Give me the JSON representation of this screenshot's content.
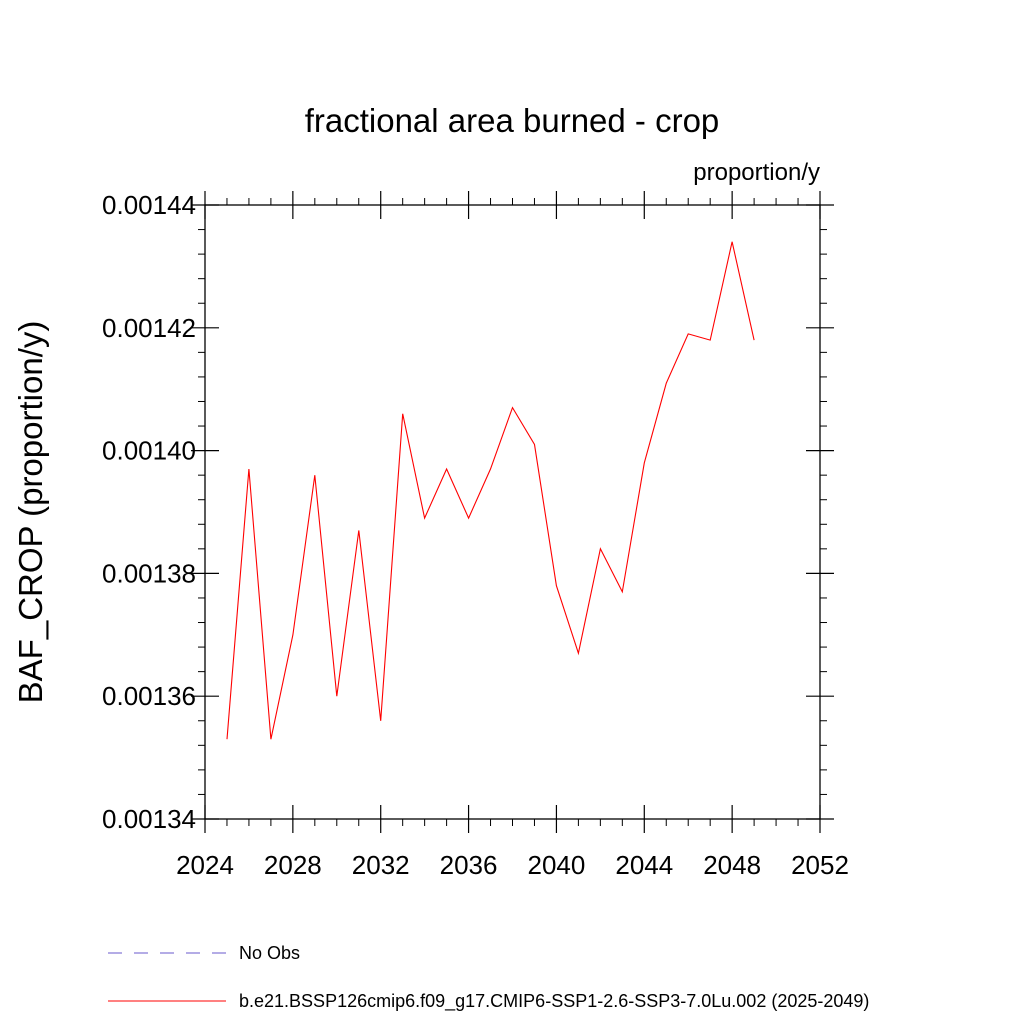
{
  "chart_data": {
    "type": "line",
    "title": "fractional area burned - crop",
    "units_label": "proportion/y",
    "xlabel": "",
    "ylabel": "BAF_CROP  (proportion/y)",
    "xlim": [
      2024,
      2052
    ],
    "ylim": [
      0.00134,
      0.00144
    ],
    "x_ticks": [
      2024,
      2028,
      2032,
      2036,
      2040,
      2044,
      2048,
      2052
    ],
    "x_tick_labels": [
      "2024",
      "2028",
      "2032",
      "2036",
      "2040",
      "2044",
      "2048",
      "2052"
    ],
    "y_ticks": [
      0.00134,
      0.00136,
      0.00138,
      0.0014,
      0.00142,
      0.00144
    ],
    "y_tick_labels": [
      "0.00134",
      "0.00136",
      "0.00138",
      "0.00140",
      "0.00142",
      "0.00144"
    ],
    "grid": false,
    "legend_position": "bottom",
    "series": [
      {
        "name": "b.e21.BSSP126cmip6.f09_g17.CMIP6-SSP1-2.6-SSP3-7.0Lu.002 (2025-2049)",
        "color": "#ff0000",
        "style": "solid",
        "x": [
          2025,
          2026,
          2027,
          2028,
          2029,
          2030,
          2031,
          2032,
          2033,
          2034,
          2035,
          2036,
          2037,
          2038,
          2039,
          2040,
          2041,
          2042,
          2043,
          2044,
          2045,
          2046,
          2047,
          2048,
          2049
        ],
        "values": [
          0.001353,
          0.001397,
          0.001353,
          0.00137,
          0.001396,
          0.00136,
          0.001387,
          0.001356,
          0.001406,
          0.001389,
          0.001397,
          0.001389,
          0.001397,
          0.001407,
          0.001401,
          0.001378,
          0.001367,
          0.001384,
          0.001377,
          0.001398,
          0.001411,
          0.001419,
          0.001418,
          0.001434,
          0.001418
        ]
      },
      {
        "name": "No Obs",
        "color": "#6a5acd",
        "style": "dashed",
        "x": [],
        "values": []
      }
    ]
  }
}
